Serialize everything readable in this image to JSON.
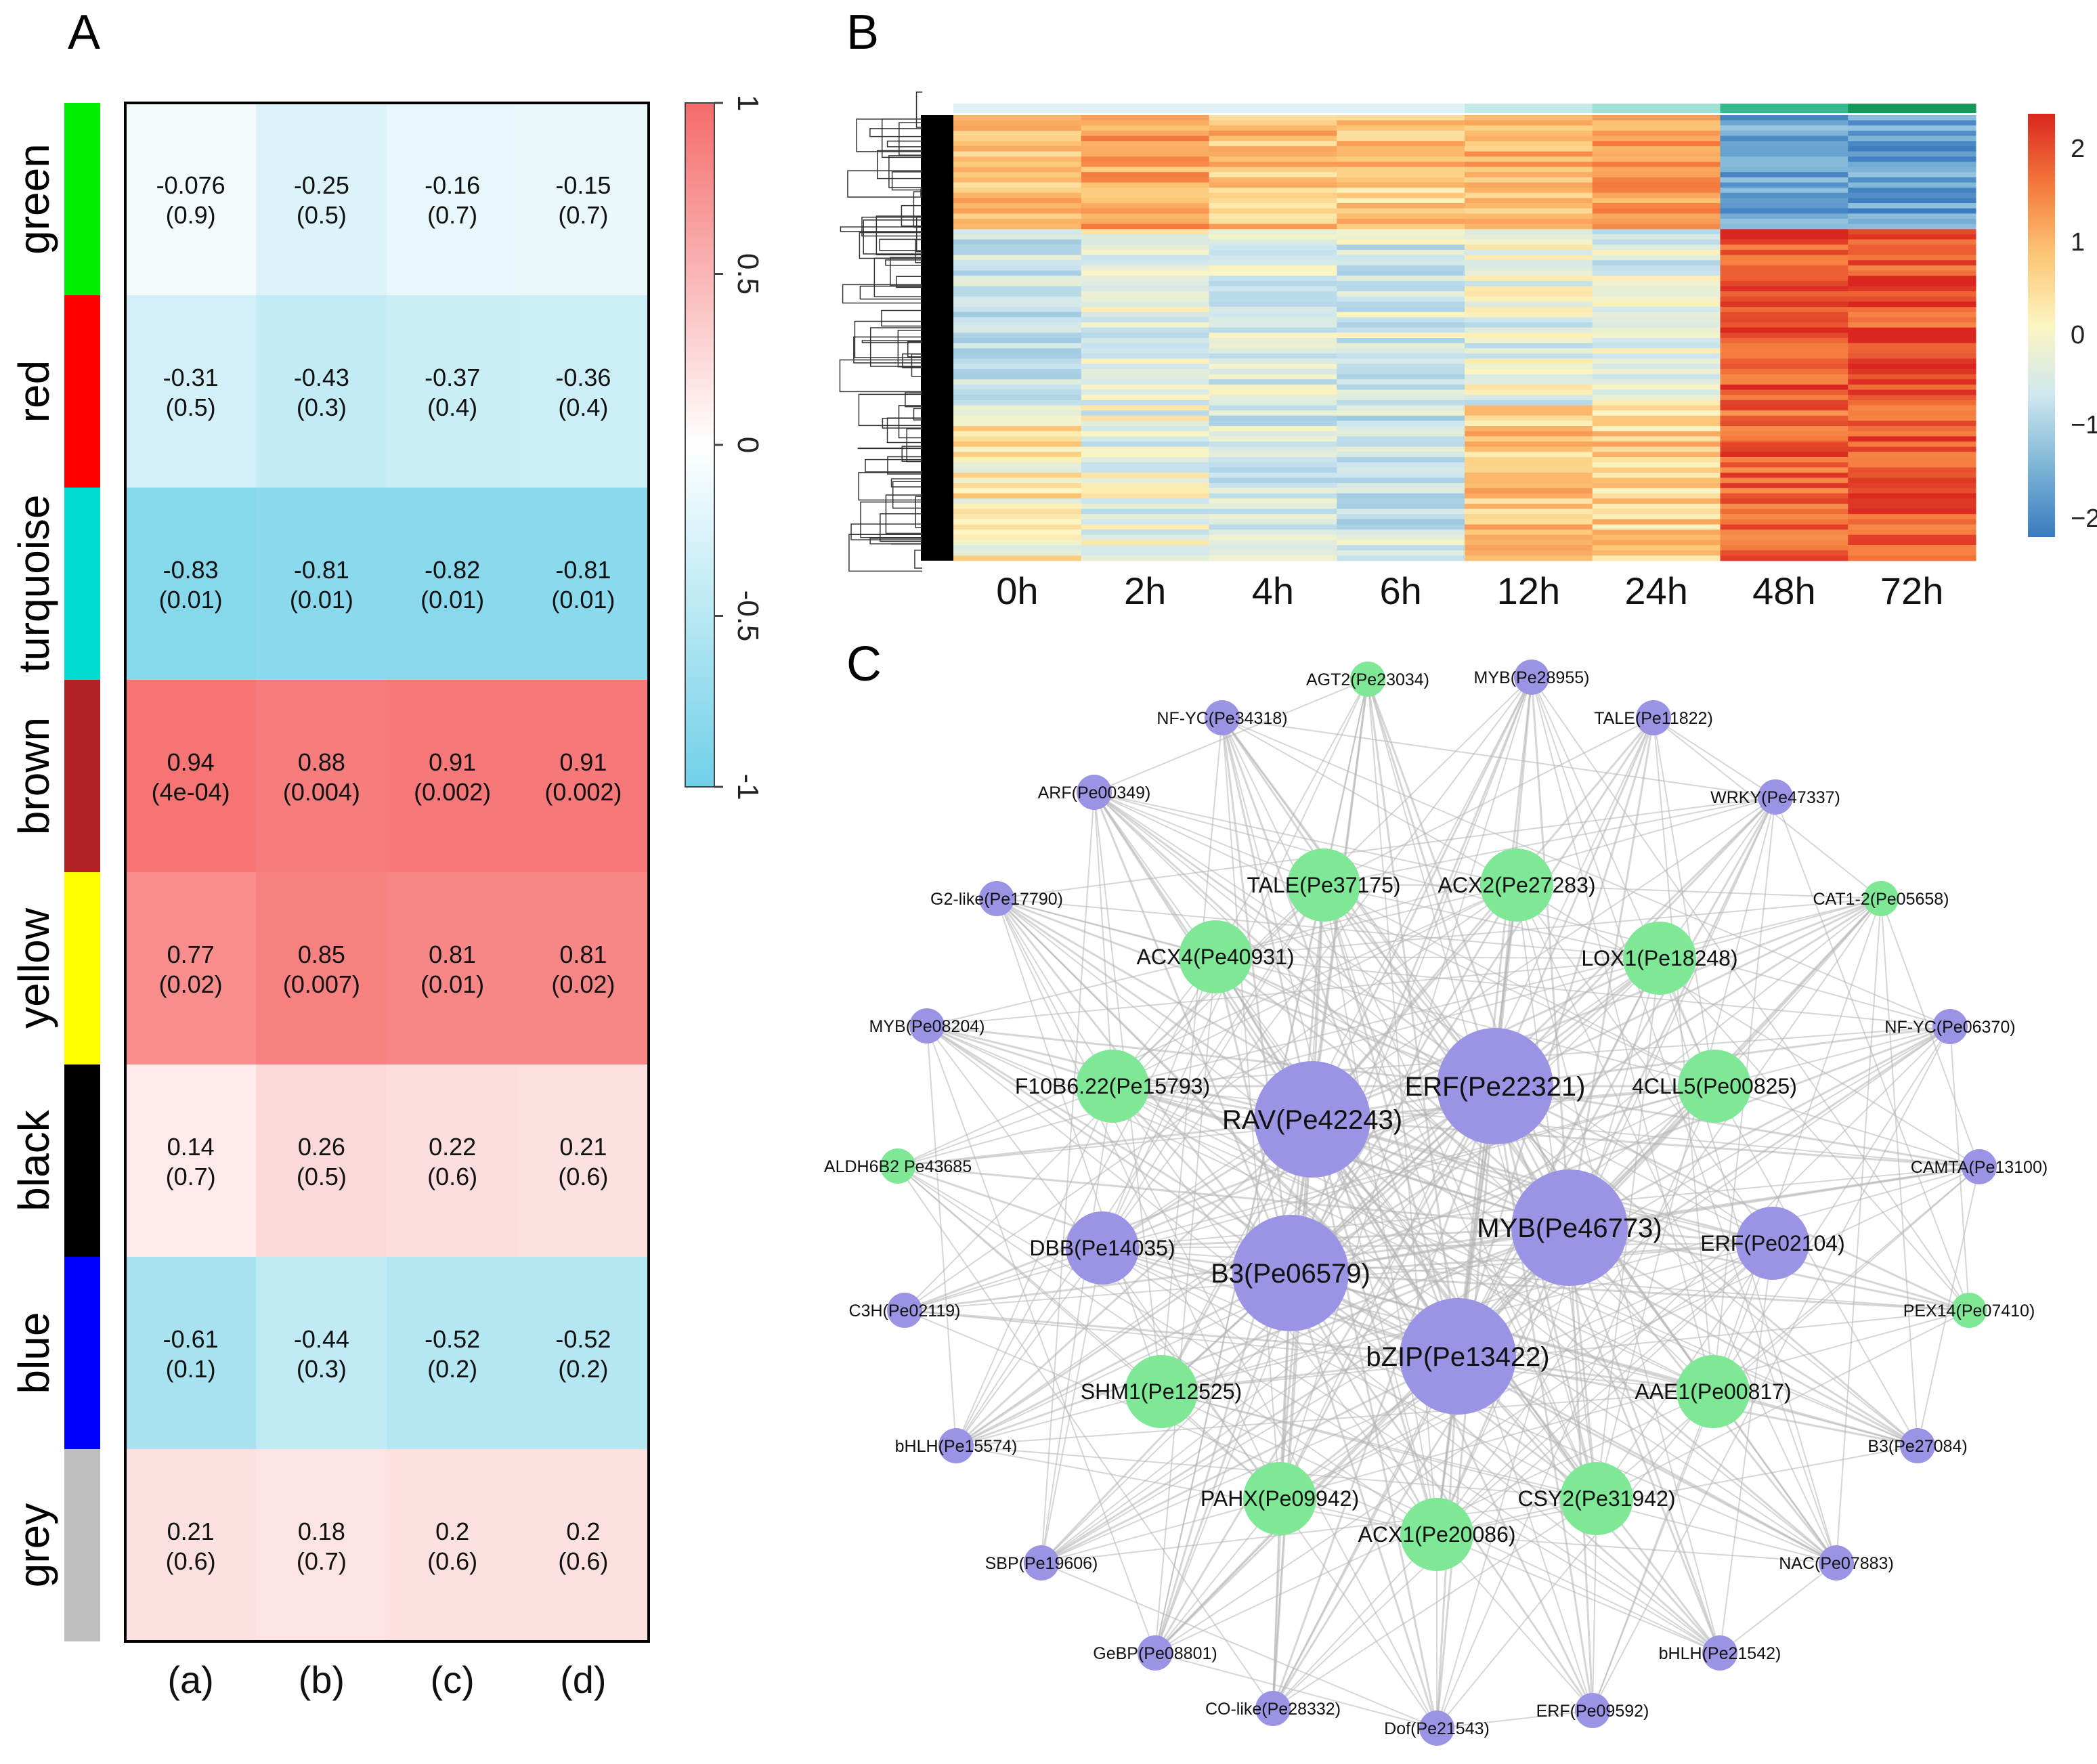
{
  "panel_labels": [
    "A",
    "B",
    "C"
  ],
  "chart_data": [
    {
      "type": "heatmap",
      "panel": "A",
      "title": "",
      "rows": [
        "green",
        "red",
        "turquoise",
        "brown",
        "yellow",
        "black",
        "blue",
        "grey"
      ],
      "row_colors": [
        "#00ee00",
        "#ff0000",
        "#00dcd0",
        "#b22222",
        "#ffff00",
        "#000000",
        "#0000ff",
        "#bebebe"
      ],
      "columns": [
        "(a)",
        "(b)",
        "(c)",
        "(d)"
      ],
      "values": [
        [
          -0.076,
          -0.25,
          -0.16,
          -0.15
        ],
        [
          -0.31,
          -0.43,
          -0.37,
          -0.36
        ],
        [
          -0.83,
          -0.81,
          -0.82,
          -0.81
        ],
        [
          0.94,
          0.88,
          0.91,
          0.91
        ],
        [
          0.77,
          0.85,
          0.81,
          0.81
        ],
        [
          0.14,
          0.26,
          0.22,
          0.21
        ],
        [
          -0.61,
          -0.44,
          -0.52,
          -0.52
        ],
        [
          0.21,
          0.18,
          0.2,
          0.2
        ]
      ],
      "value_labels": [
        [
          "-0.076",
          "-0.25",
          "-0.16",
          "-0.15"
        ],
        [
          "-0.31",
          "-0.43",
          "-0.37",
          "-0.36"
        ],
        [
          "-0.83",
          "-0.81",
          "-0.82",
          "-0.81"
        ],
        [
          "0.94",
          "0.88",
          "0.91",
          "0.91"
        ],
        [
          "0.77",
          "0.85",
          "0.81",
          "0.81"
        ],
        [
          "0.14",
          "0.26",
          "0.22",
          "0.21"
        ],
        [
          "-0.61",
          "-0.44",
          "-0.52",
          "-0.52"
        ],
        [
          "0.21",
          "0.18",
          "0.2",
          "0.2"
        ]
      ],
      "p_labels": [
        [
          "(0.9)",
          "(0.5)",
          "(0.7)",
          "(0.7)"
        ],
        [
          "(0.5)",
          "(0.3)",
          "(0.4)",
          "(0.4)"
        ],
        [
          "(0.01)",
          "(0.01)",
          "(0.01)",
          "(0.01)"
        ],
        [
          "(4e-04)",
          "(0.004)",
          "(0.002)",
          "(0.002)"
        ],
        [
          "(0.02)",
          "(0.007)",
          "(0.01)",
          "(0.02)"
        ],
        [
          "(0.7)",
          "(0.5)",
          "(0.6)",
          "(0.6)"
        ],
        [
          "(0.1)",
          "(0.3)",
          "(0.2)",
          "(0.2)"
        ],
        [
          "(0.6)",
          "(0.7)",
          "(0.6)",
          "(0.6)"
        ]
      ],
      "colorbar": {
        "range": [
          -1,
          1
        ],
        "ticks": [
          "1",
          "0.5",
          "0",
          "-0.5",
          "-1"
        ],
        "low_color": "#70d0e8",
        "mid_color": "#ffffff",
        "high_color": "#f56b6b"
      }
    },
    {
      "type": "heatmap",
      "panel": "B",
      "columns": [
        "0h",
        "2h",
        "4h",
        "6h",
        "12h",
        "24h",
        "48h",
        "72h"
      ],
      "group_bar_colors": [
        "#ddf1f6",
        "#ddf1f6",
        "#ddf1f6",
        "#ddf1f6",
        "#c3e9ea",
        "#9edfd6",
        "#35b98f",
        "#139a5b"
      ],
      "clusters": [
        {
          "rows": 22,
          "values": [
            0.8,
            1.0,
            0.7,
            0.6,
            0.8,
            1.1,
            -1.7,
            -1.8
          ]
        },
        {
          "rows": 34,
          "values": [
            -0.6,
            -0.3,
            -0.4,
            -0.5,
            -0.3,
            -0.4,
            1.9,
            1.9
          ]
        },
        {
          "rows": 30,
          "values": [
            0.1,
            -0.3,
            -0.5,
            -0.6,
            0.6,
            0.5,
            1.7,
            1.8
          ]
        }
      ],
      "colorbar": {
        "range": [
          -2.3,
          2.3
        ],
        "ticks": [
          "2",
          "1",
          "0",
          "−1",
          "−2"
        ],
        "colors": [
          "#3a7bbf",
          "#7fb6d7",
          "#cde6ef",
          "#fcf5c2",
          "#fcc574",
          "#f57a3d",
          "#d9261f"
        ]
      }
    },
    {
      "type": "network",
      "panel": "C",
      "node_colors": {
        "purple": "#9b93e3",
        "green": "#7ee896"
      },
      "nodes": [
        {
          "id": "AGT2(Pe23034)",
          "label": "AGT2(Pe23034)",
          "color": "green",
          "size": 1
        },
        {
          "id": "MYB(Pe28955)",
          "label": "MYB(Pe28955)",
          "color": "purple",
          "size": 1
        },
        {
          "id": "NF-YC(Pe34318)",
          "label": "NF-YC(Pe34318)",
          "color": "purple",
          "size": 1
        },
        {
          "id": "TALE(Pe11822)",
          "label": "TALE(Pe11822)",
          "color": "purple",
          "size": 1
        },
        {
          "id": "ARF(Pe00349)",
          "label": "ARF(Pe00349)",
          "color": "purple",
          "size": 1
        },
        {
          "id": "WRKY(Pe47337)",
          "label": "WRKY(Pe47337)",
          "color": "purple",
          "size": 1
        },
        {
          "id": "G2-like(Pe17790)",
          "label": "G2-like(Pe17790)",
          "color": "purple",
          "size": 1
        },
        {
          "id": "CAT1-2(Pe05658)",
          "label": "CAT1-2(Pe05658)",
          "color": "green",
          "size": 1
        },
        {
          "id": "TALE(Pe37175)",
          "label": "TALE(Pe37175)",
          "color": "green",
          "size": 2
        },
        {
          "id": "ACX2(Pe27283)",
          "label": "ACX2(Pe27283)",
          "color": "green",
          "size": 2
        },
        {
          "id": "ACX4(Pe40931)",
          "label": "ACX4(Pe40931)",
          "color": "green",
          "size": 2
        },
        {
          "id": "LOX1(Pe18248)",
          "label": "LOX1(Pe18248)",
          "color": "green",
          "size": 2
        },
        {
          "id": "MYB(Pe08204)",
          "label": "MYB(Pe08204)",
          "color": "purple",
          "size": 1
        },
        {
          "id": "NF-YC(Pe06370)",
          "label": "NF-YC(Pe06370)",
          "color": "purple",
          "size": 1
        },
        {
          "id": "F10B6.22(Pe15793)",
          "label": "F10B6.22(Pe15793)",
          "color": "green",
          "size": 2
        },
        {
          "id": "ERF(Pe22321)",
          "label": "ERF(Pe22321)",
          "color": "purple",
          "size": 4
        },
        {
          "id": "4CLL5(Pe00825)",
          "label": "4CLL5(Pe00825)",
          "color": "green",
          "size": 2
        },
        {
          "id": "RAV(Pe42243)",
          "label": "RAV(Pe42243)",
          "color": "purple",
          "size": 4
        },
        {
          "id": "ALDH6B2 Pe43685",
          "label": "ALDH6B2 Pe43685",
          "color": "green",
          "size": 1
        },
        {
          "id": "CAMTA(Pe13100)",
          "label": "CAMTA(Pe13100)",
          "color": "purple",
          "size": 1
        },
        {
          "id": "MYB(Pe46773)",
          "label": "MYB(Pe46773)",
          "color": "purple",
          "size": 4
        },
        {
          "id": "DBB(Pe14035)",
          "label": "DBB(Pe14035)",
          "color": "purple",
          "size": 2
        },
        {
          "id": "ERF(Pe02104)",
          "label": "ERF(Pe02104)",
          "color": "purple",
          "size": 2
        },
        {
          "id": "B3(Pe06579)",
          "label": "B3(Pe06579)",
          "color": "purple",
          "size": 4
        },
        {
          "id": "C3H(Pe02119)",
          "label": "C3H(Pe02119)",
          "color": "purple",
          "size": 1
        },
        {
          "id": "PEX14(Pe07410)",
          "label": "PEX14(Pe07410)",
          "color": "green",
          "size": 1
        },
        {
          "id": "bZIP(Pe13422)",
          "label": "bZIP(Pe13422)",
          "color": "purple",
          "size": 4
        },
        {
          "id": "SHM1(Pe12525)",
          "label": "SHM1(Pe12525)",
          "color": "green",
          "size": 2
        },
        {
          "id": "AAE1(Pe00817)",
          "label": "AAE1(Pe00817)",
          "color": "green",
          "size": 2
        },
        {
          "id": "bHLH(Pe15574)",
          "label": "bHLH(Pe15574)",
          "color": "purple",
          "size": 1
        },
        {
          "id": "B3(Pe27084)",
          "label": "B3(Pe27084)",
          "color": "purple",
          "size": 1
        },
        {
          "id": "PAHX(Pe09942)",
          "label": "PAHX(Pe09942)",
          "color": "green",
          "size": 2
        },
        {
          "id": "CSY2(Pe31942)",
          "label": "CSY2(Pe31942)",
          "color": "green",
          "size": 2
        },
        {
          "id": "ACX1(Pe20086)",
          "label": "ACX1(Pe20086)",
          "color": "green",
          "size": 2
        },
        {
          "id": "SBP(Pe19606)",
          "label": "SBP(Pe19606)",
          "color": "purple",
          "size": 1
        },
        {
          "id": "NAC(Pe07883)",
          "label": "NAC(Pe07883)",
          "color": "purple",
          "size": 1
        },
        {
          "id": "GeBP(Pe08801)",
          "label": "GeBP(Pe08801)",
          "color": "purple",
          "size": 1
        },
        {
          "id": "bHLH(Pe21542)",
          "label": "bHLH(Pe21542)",
          "color": "purple",
          "size": 1
        },
        {
          "id": "CO-like(Pe28332)",
          "label": "CO-like(Pe28332)",
          "color": "purple",
          "size": 1
        },
        {
          "id": "ERF(Pe09592)",
          "label": "ERF(Pe09592)",
          "color": "purple",
          "size": 1
        },
        {
          "id": "Dof(Pe21543)",
          "label": "Dof(Pe21543)",
          "color": "purple",
          "size": 1
        }
      ],
      "edge_color": "#b4b4b4"
    }
  ]
}
